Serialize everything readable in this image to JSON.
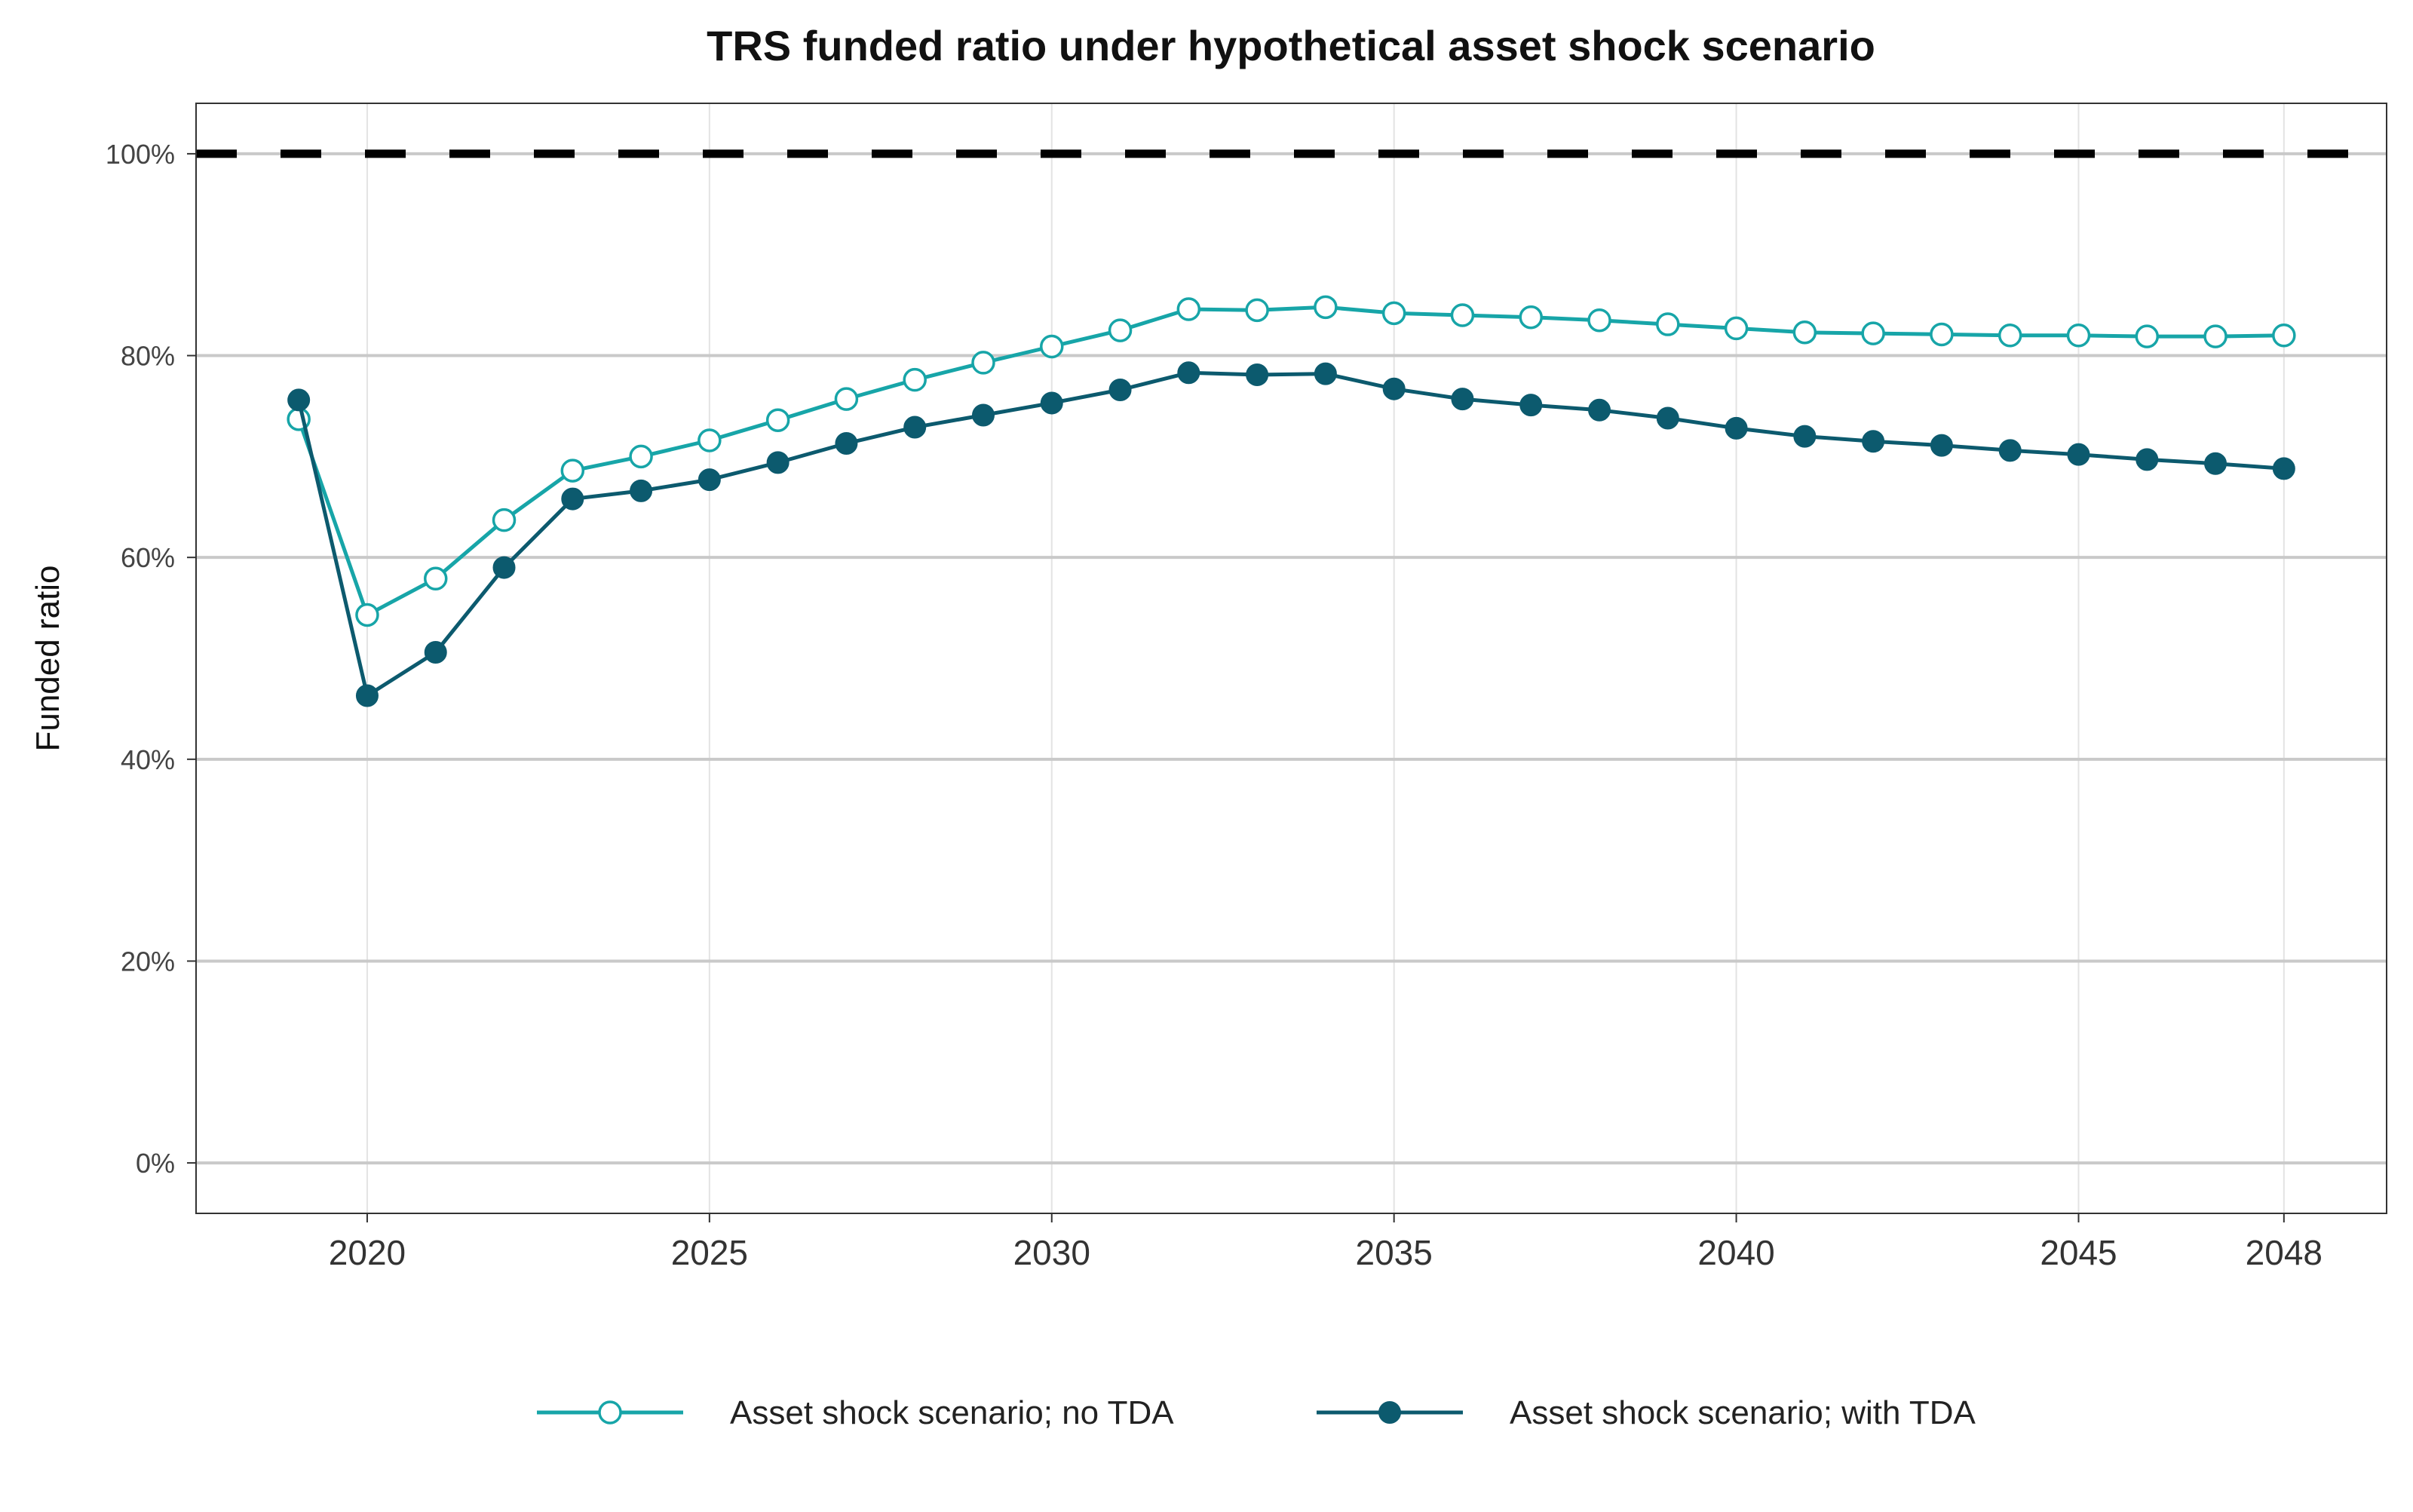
{
  "chart_data": {
    "type": "line",
    "title": "TRS funded ratio under hypothetical asset shock scenario",
    "xlabel": "",
    "ylabel": "Funded ratio",
    "x": [
      2019,
      2020,
      2021,
      2022,
      2023,
      2024,
      2025,
      2026,
      2027,
      2028,
      2029,
      2030,
      2031,
      2032,
      2033,
      2034,
      2035,
      2036,
      2037,
      2038,
      2039,
      2040,
      2041,
      2042,
      2043,
      2044,
      2045,
      2046,
      2047,
      2048
    ],
    "xlim": [
      2017.5,
      2049.5
    ],
    "ylim": [
      -5,
      105
    ],
    "x_ticks": [
      2020,
      2025,
      2030,
      2035,
      2040,
      2045,
      2048
    ],
    "y_ticks": [
      0,
      20,
      40,
      60,
      80,
      100
    ],
    "y_tick_labels": [
      "0%",
      "20%",
      "40%",
      "60%",
      "80%",
      "100%"
    ],
    "reference_line": {
      "y": 100,
      "style": "dashed",
      "color": "#000000"
    },
    "grid": true,
    "legend_position": "bottom",
    "series": [
      {
        "name": "Asset shock scenario; no TDA",
        "color": "#17a5a8",
        "marker": "open-circle",
        "values": [
          73.7,
          54.3,
          57.9,
          63.7,
          68.6,
          70.0,
          71.6,
          73.6,
          75.7,
          77.6,
          79.3,
          80.9,
          82.5,
          84.6,
          84.5,
          84.8,
          84.2,
          84.0,
          83.8,
          83.5,
          83.1,
          82.7,
          82.3,
          82.2,
          82.1,
          82.0,
          82.0,
          81.9,
          81.9,
          82.0
        ]
      },
      {
        "name": "Asset shock scenario; with TDA",
        "color": "#0c5a6e",
        "marker": "filled-circle",
        "values": [
          75.6,
          46.3,
          50.6,
          59.0,
          65.8,
          66.6,
          67.7,
          69.4,
          71.3,
          72.9,
          74.1,
          75.3,
          76.6,
          78.3,
          78.1,
          78.2,
          76.7,
          75.7,
          75.1,
          74.6,
          73.8,
          72.8,
          72.0,
          71.5,
          71.1,
          70.6,
          70.2,
          69.7,
          69.3,
          68.8
        ]
      }
    ]
  }
}
